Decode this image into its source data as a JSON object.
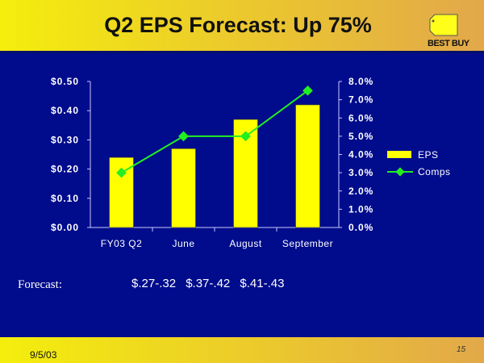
{
  "header": {
    "title": "Q2 EPS Forecast: Up 75%",
    "logo_text": "BEST BUY"
  },
  "forecast": {
    "label": "Forecast:",
    "values": "$.27-.32 $.37-.42 $.41-.43"
  },
  "footer": {
    "date": "9/5/03",
    "page": "15"
  },
  "colors": {
    "bar": "#ffff00",
    "line": "#22ee22",
    "background": "#000c8c"
  },
  "chart_data": {
    "type": "bar",
    "categories": [
      "FY03 Q2",
      "June",
      "August",
      "September"
    ],
    "series": [
      {
        "name": "EPS",
        "type": "bar",
        "axis": "left",
        "values": [
          0.24,
          0.27,
          0.37,
          0.42
        ]
      },
      {
        "name": "Comps",
        "type": "line",
        "axis": "right",
        "values": [
          3.0,
          5.0,
          5.0,
          7.5
        ]
      }
    ],
    "ylim": [
      0,
      0.5
    ],
    "y2lim": [
      0,
      8
    ],
    "yticks": [
      "$0.00",
      "$0.10",
      "$0.20",
      "$0.30",
      "$0.40",
      "$0.50"
    ],
    "y2ticks": [
      "0.0%",
      "1.0%",
      "2.0%",
      "3.0%",
      "4.0%",
      "5.0%",
      "6.0%",
      "7.0%",
      "8.0%"
    ],
    "legend": [
      "EPS",
      "Comps"
    ],
    "legend_position": "right"
  }
}
